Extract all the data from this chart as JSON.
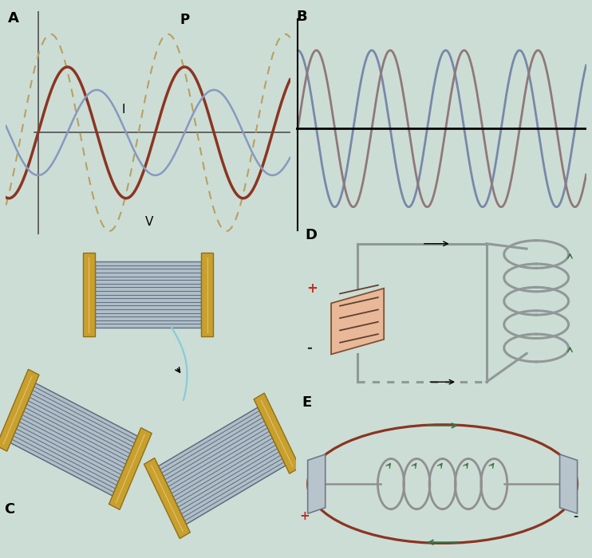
{
  "bg_color": "#ccddd6",
  "label_A": "A",
  "label_B": "B",
  "label_C": "C",
  "label_D": "D",
  "label_E": "E",
  "label_P": "P",
  "label_I": "I",
  "label_V": "V",
  "label_plus": "+",
  "label_minus": "-",
  "color_brown": "#8B3520",
  "color_blue_wave": "#8898C0",
  "color_dashed": "#B8A060",
  "color_wire": "#909898",
  "color_green": "#407040",
  "color_gold": "#C8A030",
  "color_gold_dark": "#907010",
  "color_body": "#B0BEC8",
  "color_body_edge": "#607080",
  "color_cap_fill": "#E0B890",
  "color_cap_edge": "#906030",
  "color_plate_fill": "#B8C4CC",
  "color_plate_edge": "#707888",
  "color_axis": "#505050",
  "color_B_sin1": "#7888A8",
  "color_B_sin2": "#907878",
  "font_bold": 13,
  "lw_wire": 2.0
}
